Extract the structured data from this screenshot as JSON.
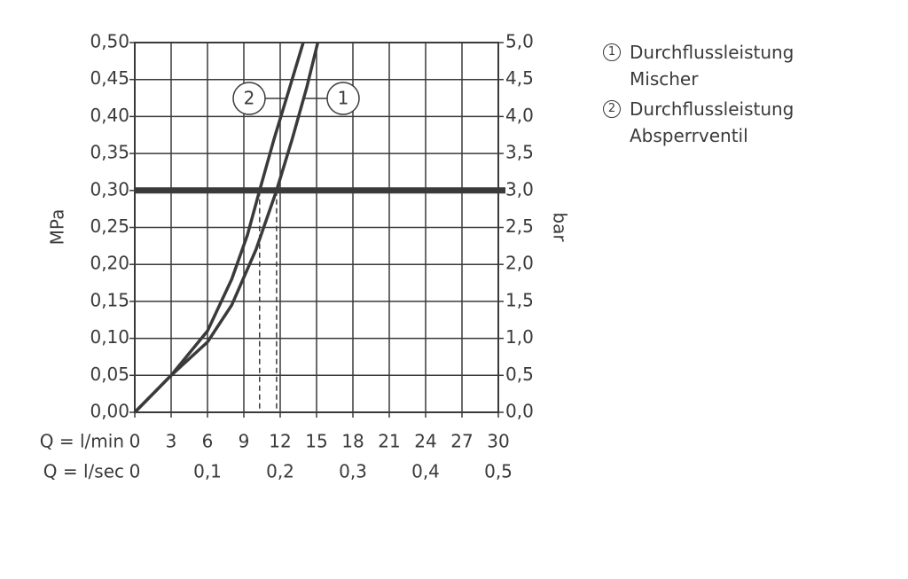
{
  "chart_data": {
    "type": "line",
    "y_label": "MPa",
    "y2_label": "bar",
    "x_label": "Q = l/min",
    "x2_label": "Q = l/sec",
    "xlim": [
      0,
      30
    ],
    "xticks": [
      0,
      3,
      6,
      9,
      12,
      15,
      18,
      21,
      24,
      27,
      30
    ],
    "x2lim": [
      0,
      0.5
    ],
    "x2ticks": [
      0,
      {
        "value": 0.1,
        "label": "0,1"
      },
      {
        "value": 0.2,
        "label": "0,2"
      },
      {
        "value": 0.3,
        "label": "0,3"
      },
      {
        "value": 0.4,
        "label": "0,4"
      },
      {
        "value": 0.5,
        "label": "0,5"
      }
    ],
    "ylim": [
      0,
      0.5
    ],
    "yticks": [
      {
        "value": 0,
        "label": "0,00"
      },
      {
        "value": 0.05,
        "label": "0,05"
      },
      {
        "value": 0.1,
        "label": "0,10"
      },
      {
        "value": 0.15,
        "label": "0,15"
      },
      {
        "value": 0.2,
        "label": "0,20"
      },
      {
        "value": 0.25,
        "label": "0,25"
      },
      {
        "value": 0.3,
        "label": "0,30"
      },
      {
        "value": 0.35,
        "label": "0,35"
      },
      {
        "value": 0.4,
        "label": "0,40"
      },
      {
        "value": 0.45,
        "label": "0,45"
      },
      {
        "value": 0.5,
        "label": "0,50"
      }
    ],
    "y2lim": [
      0,
      5
    ],
    "y2ticks": [
      {
        "value": 0,
        "label": "0,0"
      },
      {
        "value": 0.5,
        "label": "0,5"
      },
      {
        "value": 1,
        "label": "1,0"
      },
      {
        "value": 1.5,
        "label": "1,5"
      },
      {
        "value": 2,
        "label": "2,0"
      },
      {
        "value": 2.5,
        "label": "2,5"
      },
      {
        "value": 3,
        "label": "3,0"
      },
      {
        "value": 3.5,
        "label": "3,5"
      },
      {
        "value": 4,
        "label": "4,0"
      },
      {
        "value": 4.5,
        "label": "4,5"
      },
      {
        "value": 5,
        "label": "5,0"
      }
    ],
    "grid": true,
    "reference_y": 0.3,
    "reference_x": [
      10.3,
      11.7
    ],
    "series": [
      {
        "name": "Durchflussleistung Mischer",
        "label": "1",
        "color": "#3a3a3a",
        "x": [
          0,
          3,
          6,
          8,
          10,
          11.7,
          13,
          14.2,
          15.1
        ],
        "values": [
          0,
          0.05,
          0.095,
          0.145,
          0.22,
          0.3,
          0.37,
          0.44,
          0.5
        ]
      },
      {
        "name": "Durchflussleistung Absperrventil",
        "label": "2",
        "color": "#3a3a3a",
        "x": [
          0,
          3,
          6,
          8,
          9.3,
          10.3,
          11.5,
          12.8,
          13.9
        ],
        "values": [
          0,
          0.05,
          0.11,
          0.18,
          0.24,
          0.3,
          0.37,
          0.44,
          0.5
        ]
      }
    ]
  }
}
